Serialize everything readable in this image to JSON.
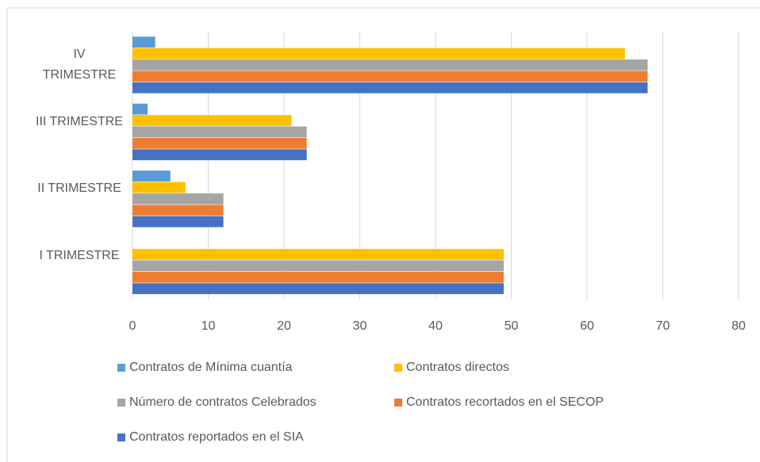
{
  "chart_data": {
    "type": "bar",
    "orientation": "horizontal",
    "categories": [
      "I TRIMESTRE",
      "II TRIMESTRE",
      "III TRIMESTRE",
      "IV TRIMESTRE"
    ],
    "series": [
      {
        "name": "Contratos de Mínima cuantía",
        "color": "#5b9bd5",
        "values": [
          0,
          5,
          2,
          3
        ]
      },
      {
        "name": "Contratos directos",
        "color": "#ffc000",
        "values": [
          49,
          7,
          21,
          65
        ]
      },
      {
        "name": "Número de contratos Celebrados",
        "color": "#a5a5a5",
        "values": [
          49,
          12,
          23,
          68
        ]
      },
      {
        "name": "Contratos recortados en el SECOP",
        "color": "#ed7d31",
        "values": [
          49,
          12,
          23,
          68
        ]
      },
      {
        "name": "Contratos reportados en el SIA",
        "color": "#4472c4",
        "values": [
          49,
          12,
          23,
          68
        ]
      }
    ],
    "xlim": [
      0,
      80
    ],
    "xticks": [
      0,
      10,
      20,
      30,
      40,
      50,
      60,
      70,
      80
    ],
    "grid": true,
    "legend": "bottom"
  }
}
